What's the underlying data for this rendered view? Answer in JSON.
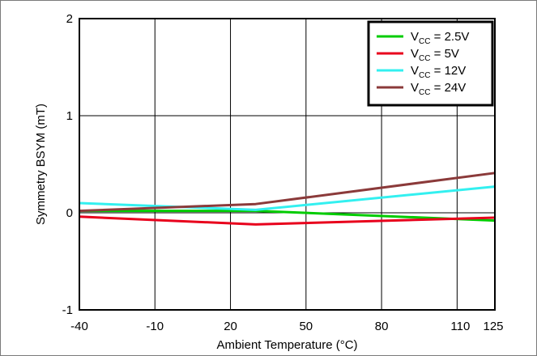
{
  "chart_data": {
    "type": "line",
    "xlabel": "Ambient Temperature (°C)",
    "ylabel": "Symmetry BSYM (mT)",
    "xlim": [
      -40,
      125
    ],
    "ylim": [
      -1,
      2
    ],
    "x_ticks": [
      {
        "value": -40,
        "label": "-40"
      },
      {
        "value": -10,
        "label": "-10"
      },
      {
        "value": 20,
        "label": "20"
      },
      {
        "value": 50,
        "label": "50"
      },
      {
        "value": 80,
        "label": "80"
      },
      {
        "value": 110,
        "label": "110"
      },
      {
        "value": 125,
        "label": "125"
      }
    ],
    "y_ticks": [
      {
        "value": -1,
        "label": "-1"
      },
      {
        "value": 0,
        "label": "0"
      },
      {
        "value": 1,
        "label": "1"
      },
      {
        "value": 2,
        "label": "2"
      }
    ],
    "grid": true,
    "legend_position": "top-right",
    "series": [
      {
        "name": "VCC = 2.5V",
        "label_main": "V",
        "label_sub": "CC",
        "label_rest": " = 2.5V",
        "color": "#00cc00",
        "x": [
          -40,
          30,
          125
        ],
        "y": [
          0.02,
          0.02,
          -0.08
        ]
      },
      {
        "name": "VCC = 5V",
        "label_main": "V",
        "label_sub": "CC",
        "label_rest": " = 5V",
        "color": "#e8001c",
        "x": [
          -40,
          30,
          125
        ],
        "y": [
          -0.04,
          -0.12,
          -0.05
        ]
      },
      {
        "name": "VCC = 12V",
        "label_main": "V",
        "label_sub": "CC",
        "label_rest": " = 12V",
        "color": "#33f0f0",
        "x": [
          -40,
          30,
          125
        ],
        "y": [
          0.1,
          0.03,
          0.27
        ]
      },
      {
        "name": "VCC = 24V",
        "label_main": "V",
        "label_sub": "CC",
        "label_rest": " = 24V",
        "color": "#8b3a3a",
        "x": [
          -40,
          30,
          125
        ],
        "y": [
          0.02,
          0.09,
          0.41
        ]
      }
    ]
  }
}
